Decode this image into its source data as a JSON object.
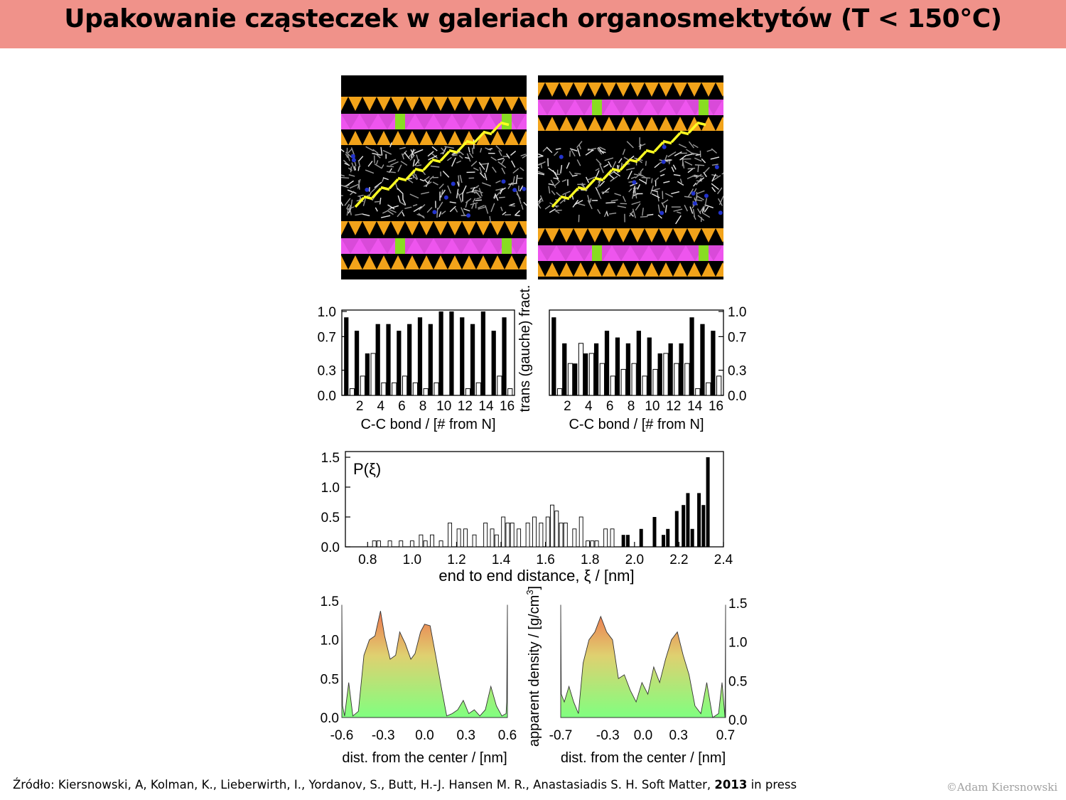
{
  "title": "Upakowanie cząsteczek w galeriach organosmektytów (T < 150°C)",
  "source": {
    "prefix": "Źródło: Kiersnowski, A, Kolman, K., Lieberwirth, I., Yordanov, S., Butt,  H.-J. Hansen M. R., Anastasiadis S. H. Soft Matter, ",
    "year": "2013",
    "suffix": " in press"
  },
  "copyright": "©Adam Kiersnowski",
  "colors": {
    "title_bar": "#f0928a",
    "tetra": "#f2a31a",
    "octa": "#ee55ee",
    "substituted": "#88dd22",
    "chain": "#ffff22",
    "density_top": "#f07050",
    "density_bottom": "#80ff80"
  },
  "chart_data": [
    {
      "type": "bar",
      "panel": "trans-gauche-left",
      "xlabel": "C-C bond / [# from N]",
      "ylabel": "",
      "ylim": [
        0,
        1.0
      ],
      "yticks": [
        "1.0",
        "0.7",
        "0.3",
        "0.0"
      ],
      "xticks": [
        "2",
        "4",
        "6",
        "8",
        "10",
        "12",
        "14",
        "16"
      ],
      "categories": [
        1,
        2,
        3,
        4,
        5,
        6,
        7,
        8,
        9,
        10,
        11,
        12,
        13,
        14,
        15,
        16
      ],
      "series": [
        {
          "values": [
            0.93,
            0.77,
            0.5,
            0.85,
            0.85,
            0.77,
            0.85,
            0.93,
            0.85,
            1.0,
            1.0,
            0.93,
            0.85,
            1.0,
            0.77,
            0.93
          ]
        },
        {
          "values": [
            0.08,
            0.23,
            0.5,
            0.15,
            0.15,
            0.23,
            0.15,
            0.08,
            0.15,
            0.0,
            0.0,
            0.08,
            0.15,
            0.0,
            0.23,
            0.08
          ]
        }
      ]
    },
    {
      "type": "bar",
      "panel": "trans-gauche-right",
      "xlabel": "C-C bond / [# from N]",
      "ylabel": "trans (gauche) fract.",
      "ylim": [
        0,
        1.0
      ],
      "yticks": [
        "1.0",
        "0.7",
        "0.3",
        "0.0"
      ],
      "xticks": [
        "2",
        "4",
        "6",
        "8",
        "10",
        "12",
        "14",
        "16"
      ],
      "categories": [
        1,
        2,
        3,
        4,
        5,
        6,
        7,
        8,
        9,
        10,
        11,
        12,
        13,
        14,
        15,
        16
      ],
      "series": [
        {
          "values": [
            0.93,
            0.62,
            0.38,
            0.5,
            0.62,
            0.77,
            0.69,
            0.62,
            0.77,
            0.69,
            0.5,
            0.62,
            0.62,
            0.93,
            0.85,
            0.77
          ]
        },
        {
          "values": [
            0.08,
            0.38,
            0.62,
            0.5,
            0.38,
            0.23,
            0.31,
            0.38,
            0.23,
            0.31,
            0.5,
            0.38,
            0.38,
            0.08,
            0.15,
            0.23
          ]
        }
      ]
    },
    {
      "type": "bar",
      "panel": "end-to-end",
      "annotation": "P(ξ)",
      "xlabel": "end to end distance, ξ / [nm]",
      "xlim": [
        0.7,
        2.4
      ],
      "ylim": [
        0,
        1.5
      ],
      "xticks": [
        "0.8",
        "1.0",
        "1.2",
        "1.4",
        "1.6",
        "1.8",
        "2.0",
        "2.2",
        "2.4"
      ],
      "yticks": [
        "1.5",
        "1.0",
        "0.5",
        "0.0"
      ],
      "series": [
        {
          "x": [
            1.95,
            1.97,
            2.03,
            2.09,
            2.13,
            2.15,
            2.19,
            2.22,
            2.24,
            2.26,
            2.29,
            2.31,
            2.33
          ],
          "values": [
            0.2,
            0.2,
            0.3,
            0.5,
            0.2,
            0.3,
            0.6,
            0.7,
            0.9,
            0.3,
            0.9,
            0.7,
            1.5
          ]
        },
        {
          "x": [
            0.83,
            0.85,
            0.9,
            0.95,
            1.0,
            1.04,
            1.06,
            1.09,
            1.13,
            1.17,
            1.21,
            1.24,
            1.28,
            1.33,
            1.36,
            1.38,
            1.41,
            1.43,
            1.45,
            1.48,
            1.52,
            1.55,
            1.58,
            1.61,
            1.63,
            1.65,
            1.67,
            1.69,
            1.73,
            1.76,
            1.79,
            1.81,
            1.83,
            1.87,
            1.9
          ],
          "values": [
            0.1,
            0.1,
            0.1,
            0.1,
            0.1,
            0.2,
            0.1,
            0.2,
            0.1,
            0.4,
            0.3,
            0.3,
            0.2,
            0.4,
            0.3,
            0.2,
            0.5,
            0.4,
            0.4,
            0.3,
            0.4,
            0.5,
            0.4,
            0.5,
            0.7,
            0.6,
            0.4,
            0.4,
            0.3,
            0.5,
            0.1,
            0.1,
            0.1,
            0.3,
            0.3
          ]
        }
      ]
    },
    {
      "type": "area",
      "panel": "density-left",
      "xlabel": "dist. from the center / [nm]",
      "ylabel": "",
      "xlim": [
        -0.6,
        0.6
      ],
      "ylim": [
        0,
        1.5
      ],
      "xticks": [
        "-0.6",
        "-0.3",
        "0.0",
        "0.3",
        "0.6"
      ],
      "yticks": [
        "1.5",
        "1.0",
        "0.5",
        "0.0"
      ],
      "x": [
        -0.6,
        -0.595,
        -0.58,
        -0.55,
        -0.52,
        -0.48,
        -0.44,
        -0.4,
        -0.36,
        -0.32,
        -0.29,
        -0.25,
        -0.21,
        -0.18,
        -0.14,
        -0.1,
        -0.07,
        -0.03,
        0.0,
        0.04,
        0.08,
        0.12,
        0.16,
        0.2,
        0.24,
        0.28,
        0.32,
        0.36,
        0.4,
        0.44,
        0.48,
        0.52,
        0.56,
        0.59,
        0.595,
        0.6
      ],
      "values": [
        1.45,
        0.15,
        0.02,
        0.45,
        0.02,
        0.08,
        0.8,
        1.0,
        1.05,
        1.37,
        1.05,
        0.75,
        0.8,
        1.1,
        0.95,
        0.75,
        0.82,
        1.1,
        1.2,
        1.18,
        0.8,
        0.4,
        0.02,
        0.05,
        0.1,
        0.22,
        0.05,
        0.1,
        0.02,
        0.1,
        0.4,
        0.15,
        0.02,
        0.05,
        0.2,
        1.45
      ]
    },
    {
      "type": "area",
      "panel": "density-right",
      "xlabel": "dist. from the center / [nm]",
      "ylabel": "apparent density / [g/cm3]",
      "xlim": [
        -0.7,
        0.7
      ],
      "ylim": [
        0,
        1.5
      ],
      "xticks": [
        "-0.7",
        "-0.3",
        "0.0",
        "0.3",
        "0.7"
      ],
      "yticks": [
        "1.5",
        "1.0",
        "0.5",
        "0.0"
      ],
      "x": [
        -0.7,
        -0.695,
        -0.67,
        -0.63,
        -0.59,
        -0.55,
        -0.51,
        -0.46,
        -0.41,
        -0.36,
        -0.31,
        -0.26,
        -0.21,
        -0.16,
        -0.11,
        -0.06,
        -0.01,
        0.04,
        0.09,
        0.14,
        0.19,
        0.24,
        0.29,
        0.34,
        0.39,
        0.44,
        0.49,
        0.54,
        0.59,
        0.64,
        0.67,
        0.695,
        0.7
      ],
      "values": [
        1.45,
        0.3,
        0.2,
        0.4,
        0.2,
        0.05,
        0.7,
        1.0,
        1.1,
        1.3,
        1.1,
        1.0,
        0.5,
        0.55,
        0.35,
        0.2,
        0.45,
        0.3,
        0.65,
        0.45,
        0.75,
        1.0,
        1.1,
        0.8,
        0.55,
        0.15,
        0.05,
        0.45,
        0.0,
        0.05,
        0.45,
        0.0,
        1.45
      ]
    }
  ]
}
